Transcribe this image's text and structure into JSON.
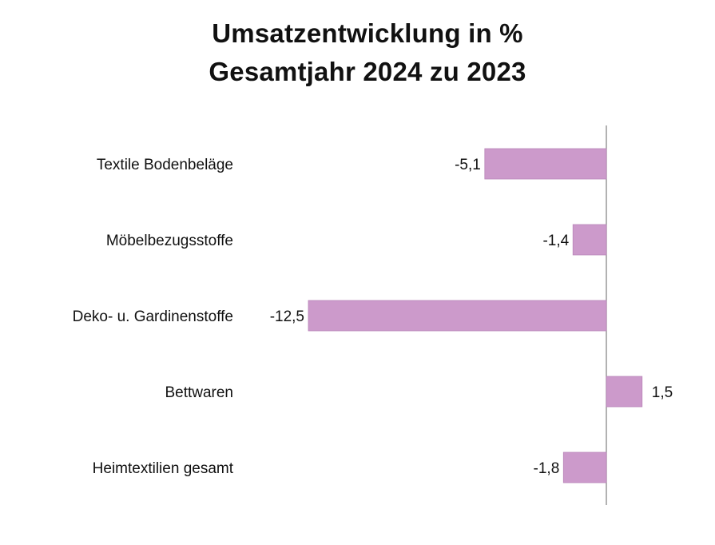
{
  "chart_data": {
    "type": "bar",
    "orientation": "horizontal",
    "title": [
      "Umsatzentwicklung in %",
      "Gesamtjahr 2024 zu 2023"
    ],
    "categories": [
      "Textile Bodenbeläge",
      "Möbelbezugsstoffe",
      "Deko- u. Gardinenstoffe",
      "Bettwaren",
      "Heimtextilien gesamt"
    ],
    "values": [
      -5.1,
      -1.4,
      -12.5,
      1.5,
      -1.8
    ],
    "value_labels": [
      "-5,1",
      "-1,4",
      "-12,5",
      "1,5",
      "-1,8"
    ],
    "xlim": [
      -12.5,
      1.5
    ],
    "grid": false,
    "legend": "none",
    "bar_color": "#cc9acb",
    "bar_border_color": "#b985b8",
    "axis_color": "#888888"
  }
}
